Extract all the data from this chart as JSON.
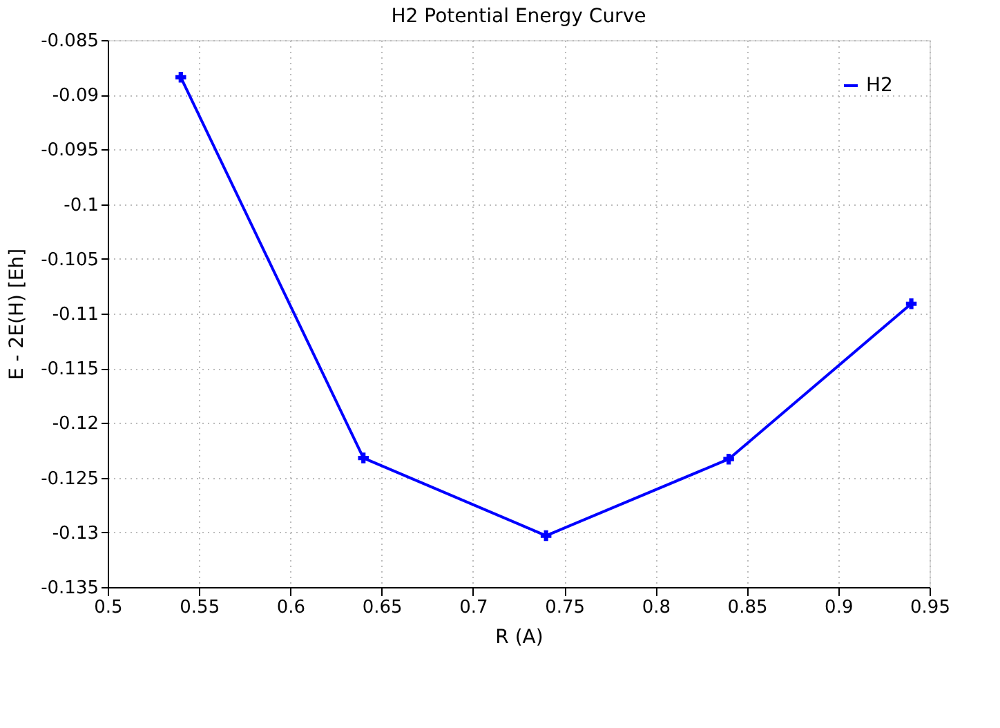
{
  "chart_data": {
    "type": "line",
    "title": "H2 Potential Energy Curve",
    "xlabel": "R (A)",
    "ylabel": "E - 2E(H) [Eh]",
    "x": [
      0.54,
      0.64,
      0.74,
      0.84,
      0.94
    ],
    "series": [
      {
        "name": "H2",
        "color": "#0000ff",
        "values": [
          -0.0884,
          -0.1232,
          -0.1303,
          -0.1233,
          -0.1091
        ]
      }
    ],
    "xlim": [
      0.5,
      0.95
    ],
    "xticks": [
      0.5,
      0.55,
      0.6,
      0.65,
      0.7,
      0.75,
      0.8,
      0.85,
      0.9,
      0.95
    ],
    "ylim": [
      -0.135,
      -0.085
    ],
    "yticks": [
      -0.135,
      -0.13,
      -0.125,
      -0.12,
      -0.115,
      -0.11,
      -0.105,
      -0.1,
      -0.095,
      -0.09,
      -0.085
    ],
    "grid": true,
    "legend": "top right",
    "marker": "cross",
    "line_style": "solid"
  }
}
